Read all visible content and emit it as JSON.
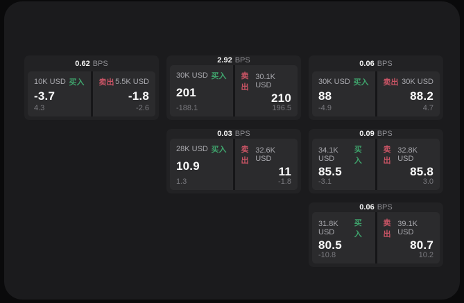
{
  "labels": {
    "buy": "买入",
    "sell": "卖出",
    "bps_unit": "BPS"
  },
  "colors": {
    "buy": "#3fa36c",
    "sell": "#c95465",
    "surface": "#1b1b1d",
    "card": "#222224",
    "panel": "#2b2b2d",
    "background": "#0a0a0b"
  },
  "cards": [
    {
      "col": 1,
      "row": 1,
      "bps": "0.62",
      "buy": {
        "amount": "10K USD",
        "value": "-3.7",
        "sub": "4.3"
      },
      "sell": {
        "amount": "5.5K USD",
        "value": "-1.8",
        "sub": "-2.6"
      }
    },
    {
      "col": 2,
      "row": 1,
      "bps": "2.92",
      "buy": {
        "amount": "30K USD",
        "value": "201",
        "sub": "-188.1"
      },
      "sell": {
        "amount": "30.1K USD",
        "value": "210",
        "sub": "196.5"
      }
    },
    {
      "col": 3,
      "row": 1,
      "bps": "0.06",
      "buy": {
        "amount": "30K USD",
        "value": "88",
        "sub": "-4.9"
      },
      "sell": {
        "amount": "30K USD",
        "value": "88.2",
        "sub": "4.7"
      }
    },
    {
      "col": 2,
      "row": 2,
      "bps": "0.03",
      "buy": {
        "amount": "28K USD",
        "value": "10.9",
        "sub": "1.3"
      },
      "sell": {
        "amount": "32.6K USD",
        "value": "11",
        "sub": "-1.8"
      }
    },
    {
      "col": 3,
      "row": 2,
      "bps": "0.09",
      "buy": {
        "amount": "34.1K USD",
        "value": "85.5",
        "sub": "-3.1"
      },
      "sell": {
        "amount": "32.8K USD",
        "value": "85.8",
        "sub": "3.0"
      }
    },
    {
      "col": 3,
      "row": 3,
      "bps": "0.06",
      "buy": {
        "amount": "31.8K USD",
        "value": "80.5",
        "sub": "-10.8"
      },
      "sell": {
        "amount": "39.1K USD",
        "value": "80.7",
        "sub": "10.2"
      }
    }
  ]
}
